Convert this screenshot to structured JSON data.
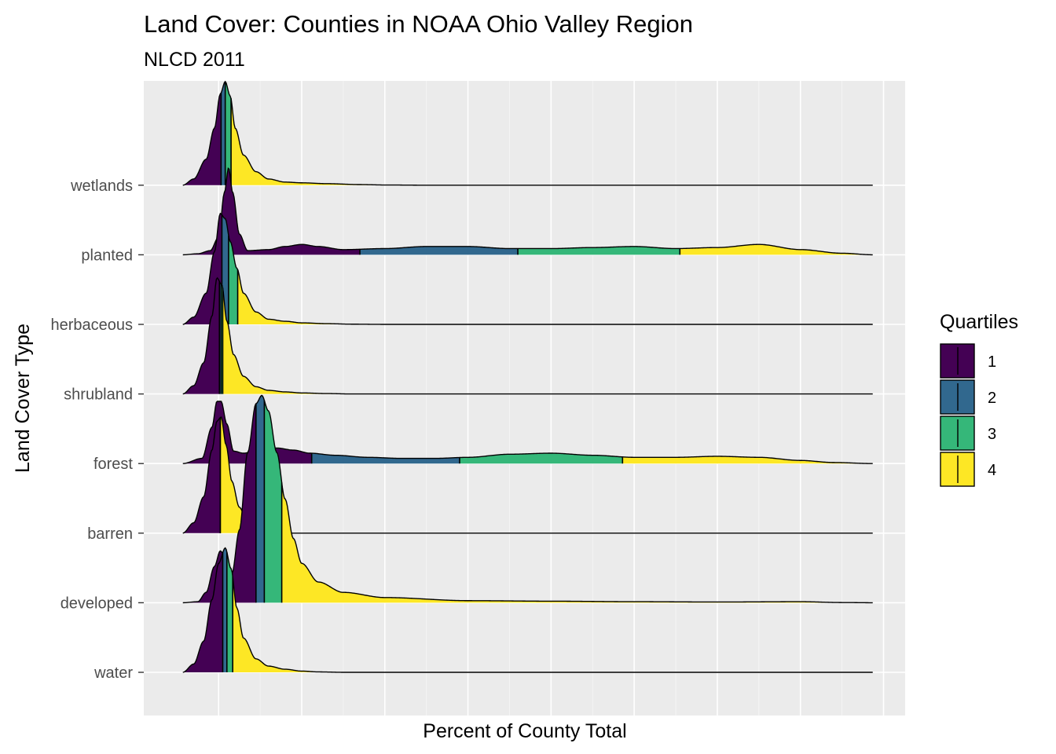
{
  "chart_data": {
    "type": "ridgeline",
    "title": "Land Cover: Counties in NOAA Ohio Valley Region",
    "subtitle": "NLCD 2011",
    "xlabel": "Percent of County Total",
    "ylabel": "Land Cover Type",
    "xlim": [
      -0.09,
      0.826
    ],
    "grid": true,
    "legend": {
      "title": "Quartiles",
      "position": "right",
      "entries": [
        "1",
        "2",
        "3",
        "4"
      ]
    },
    "quartile_colors": [
      "#440154",
      "#31688E",
      "#35B779",
      "#FDE725"
    ],
    "panel_background": "#EBEBEB",
    "categories": [
      "wetlands",
      "planted",
      "herbaceous",
      "shrubland",
      "forest",
      "barren",
      "developed",
      "water"
    ],
    "series": [
      {
        "category": "wetlands",
        "range": [
          -0.043,
          0.787
        ],
        "quartiles": [
          0.003,
          0.008,
          0.015
        ],
        "density": [
          [
            -0.043,
            0
          ],
          [
            -0.03,
            0.06
          ],
          [
            -0.015,
            0.25
          ],
          [
            -0.005,
            0.55
          ],
          [
            0.002,
            0.88
          ],
          [
            0.008,
            1.0
          ],
          [
            0.014,
            0.86
          ],
          [
            0.02,
            0.55
          ],
          [
            0.03,
            0.29
          ],
          [
            0.045,
            0.13
          ],
          [
            0.06,
            0.06
          ],
          [
            0.08,
            0.03
          ],
          [
            0.1,
            0.023
          ],
          [
            0.13,
            0.015
          ],
          [
            0.17,
            0.006
          ],
          [
            0.2,
            0.002
          ],
          [
            0.25,
            0
          ],
          [
            0.787,
            0
          ]
        ]
      },
      {
        "category": "planted",
        "range": [
          -0.043,
          0.787
        ],
        "quartiles": [
          0.17,
          0.36,
          0.555
        ],
        "density": [
          [
            -0.043,
            0
          ],
          [
            -0.025,
            0.01
          ],
          [
            -0.01,
            0.04
          ],
          [
            0.0,
            0.17
          ],
          [
            0.007,
            0.6
          ],
          [
            0.012,
            0.84
          ],
          [
            0.017,
            0.6
          ],
          [
            0.025,
            0.2
          ],
          [
            0.035,
            0.04
          ],
          [
            0.06,
            0.05
          ],
          [
            0.08,
            0.08
          ],
          [
            0.1,
            0.1
          ],
          [
            0.12,
            0.08
          ],
          [
            0.15,
            0.05
          ],
          [
            0.2,
            0.06
          ],
          [
            0.25,
            0.08
          ],
          [
            0.3,
            0.08
          ],
          [
            0.35,
            0.06
          ],
          [
            0.4,
            0.06
          ],
          [
            0.45,
            0.07
          ],
          [
            0.5,
            0.08
          ],
          [
            0.55,
            0.06
          ],
          [
            0.6,
            0.07
          ],
          [
            0.65,
            0.1
          ],
          [
            0.7,
            0.05
          ],
          [
            0.75,
            0.015
          ],
          [
            0.787,
            0
          ]
        ]
      },
      {
        "category": "herbaceous",
        "range": [
          -0.043,
          0.787
        ],
        "quartiles": [
          0.004,
          0.012,
          0.023
        ],
        "density": [
          [
            -0.043,
            0
          ],
          [
            -0.03,
            0.07
          ],
          [
            -0.015,
            0.3
          ],
          [
            -0.005,
            0.7
          ],
          [
            0.002,
            1.07
          ],
          [
            0.008,
            1.02
          ],
          [
            0.014,
            0.8
          ],
          [
            0.022,
            0.54
          ],
          [
            0.03,
            0.3
          ],
          [
            0.045,
            0.12
          ],
          [
            0.06,
            0.05
          ],
          [
            0.08,
            0.03
          ],
          [
            0.1,
            0.015
          ],
          [
            0.13,
            0.007
          ],
          [
            0.16,
            0.002
          ],
          [
            0.2,
            0
          ],
          [
            0.787,
            0
          ]
        ]
      },
      {
        "category": "shrubland",
        "range": [
          -0.043,
          0.787
        ],
        "quartiles": [
          0.001,
          0.003,
          0.005
        ],
        "density": [
          [
            -0.043,
            0
          ],
          [
            -0.03,
            0.08
          ],
          [
            -0.018,
            0.3
          ],
          [
            -0.008,
            0.75
          ],
          [
            -0.002,
            1.12
          ],
          [
            0.004,
            1.05
          ],
          [
            0.01,
            0.7
          ],
          [
            0.018,
            0.38
          ],
          [
            0.03,
            0.17
          ],
          [
            0.045,
            0.07
          ],
          [
            0.06,
            0.035
          ],
          [
            0.08,
            0.02
          ],
          [
            0.1,
            0.01
          ],
          [
            0.13,
            0.004
          ],
          [
            0.16,
            0
          ],
          [
            0.787,
            0
          ]
        ]
      },
      {
        "category": "forest",
        "range": [
          -0.043,
          0.787
        ],
        "quartiles": [
          0.112,
          0.29,
          0.486
        ],
        "density": [
          [
            -0.043,
            0
          ],
          [
            -0.02,
            0.05
          ],
          [
            -0.008,
            0.35
          ],
          [
            -0.002,
            0.6
          ],
          [
            0.003,
            0.6
          ],
          [
            0.01,
            0.38
          ],
          [
            0.018,
            0.12
          ],
          [
            0.03,
            0.1
          ],
          [
            0.05,
            0.14
          ],
          [
            0.07,
            0.15
          ],
          [
            0.09,
            0.13
          ],
          [
            0.11,
            0.1
          ],
          [
            0.14,
            0.08
          ],
          [
            0.18,
            0.06
          ],
          [
            0.22,
            0.05
          ],
          [
            0.26,
            0.05
          ],
          [
            0.3,
            0.06
          ],
          [
            0.35,
            0.09
          ],
          [
            0.4,
            0.1
          ],
          [
            0.45,
            0.08
          ],
          [
            0.5,
            0.06
          ],
          [
            0.55,
            0.06
          ],
          [
            0.6,
            0.07
          ],
          [
            0.65,
            0.06
          ],
          [
            0.7,
            0.03
          ],
          [
            0.74,
            0.01
          ],
          [
            0.787,
            0
          ]
        ]
      },
      {
        "category": "barren",
        "range": [
          -0.043,
          0.787
        ],
        "quartiles": [
          0.002,
          0.002,
          0.002
        ],
        "density": [
          [
            -0.043,
            0
          ],
          [
            -0.03,
            0.1
          ],
          [
            -0.018,
            0.35
          ],
          [
            -0.008,
            0.8
          ],
          [
            -0.002,
            1.08
          ],
          [
            0.003,
            1.12
          ],
          [
            0.009,
            0.85
          ],
          [
            0.016,
            0.5
          ],
          [
            0.025,
            0.25
          ],
          [
            0.035,
            0.1
          ],
          [
            0.045,
            0.04
          ],
          [
            0.055,
            0.01
          ],
          [
            0.065,
            0
          ],
          [
            0.787,
            0
          ]
        ]
      },
      {
        "category": "developed",
        "range": [
          -0.043,
          0.787
        ],
        "quartiles": [
          0.045,
          0.055,
          0.076
        ],
        "density": [
          [
            -0.043,
            0
          ],
          [
            -0.025,
            0.01
          ],
          [
            -0.015,
            0.1
          ],
          [
            -0.005,
            0.35
          ],
          [
            0.002,
            0.5
          ],
          [
            0.008,
            0.45
          ],
          [
            0.016,
            0.28
          ],
          [
            0.025,
            0.7
          ],
          [
            0.035,
            1.45
          ],
          [
            0.045,
            1.92
          ],
          [
            0.052,
            2.0
          ],
          [
            0.06,
            1.85
          ],
          [
            0.07,
            1.45
          ],
          [
            0.08,
            1.0
          ],
          [
            0.09,
            0.62
          ],
          [
            0.1,
            0.38
          ],
          [
            0.12,
            0.2
          ],
          [
            0.15,
            0.1
          ],
          [
            0.2,
            0.05
          ],
          [
            0.3,
            0.02
          ],
          [
            0.4,
            0.015
          ],
          [
            0.5,
            0.01
          ],
          [
            0.6,
            0.007
          ],
          [
            0.7,
            0.01
          ],
          [
            0.75,
            0.002
          ],
          [
            0.787,
            0
          ]
        ]
      },
      {
        "category": "water",
        "range": [
          -0.043,
          0.787
        ],
        "quartiles": [
          0.005,
          0.01,
          0.017
        ],
        "density": [
          [
            -0.043,
            0
          ],
          [
            -0.03,
            0.08
          ],
          [
            -0.018,
            0.3
          ],
          [
            -0.008,
            0.7
          ],
          [
            0.0,
            1.05
          ],
          [
            0.008,
            1.2
          ],
          [
            0.015,
            1.0
          ],
          [
            0.022,
            0.62
          ],
          [
            0.03,
            0.33
          ],
          [
            0.045,
            0.13
          ],
          [
            0.06,
            0.06
          ],
          [
            0.08,
            0.03
          ],
          [
            0.1,
            0.012
          ],
          [
            0.12,
            0.004
          ],
          [
            0.15,
            0
          ],
          [
            0.787,
            0
          ]
        ]
      }
    ]
  }
}
